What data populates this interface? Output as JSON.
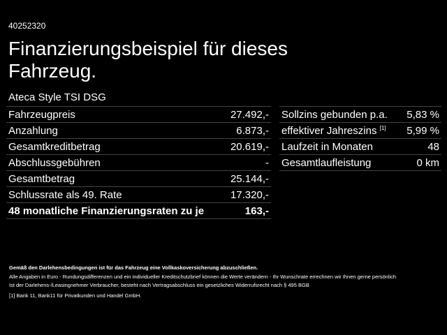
{
  "header": {
    "id": "40252320",
    "title_lines": [
      "Finanzierungsbeispiel für dieses",
      "Fahrzeug."
    ],
    "model": "Ateca Style TSI DSG"
  },
  "left_table": {
    "rows": [
      [
        "Fahrzeugpreis",
        "27.492,-"
      ],
      [
        "Anzahlung",
        "6.873,-"
      ],
      [
        "Gesamtkreditbetrag",
        "20.619,-"
      ],
      [
        "Abschlussgebühren",
        "-"
      ],
      [
        "Gesamtbetrag",
        "25.144,-"
      ],
      [
        "Schlussrate als 49. Rate",
        "17.320,-"
      ],
      [
        "48 monatliche Finanzierungsraten zu je",
        "163,-"
      ]
    ]
  },
  "right_table": {
    "rows": [
      {
        "label": "Sollzins gebunden p.a.",
        "value": "5,83 %"
      },
      {
        "label": "effektiver Jahreszins",
        "sup": "[1]",
        "value": "5,99 %"
      },
      {
        "label": "Laufzeit in Monaten",
        "value": "48"
      },
      {
        "label": "Gesamtlaufleistung",
        "value": "0 km"
      }
    ]
  },
  "footer": {
    "notice": "Gemäß den Darlehensbedingungen ist für das Fahrzeug eine Vollkaskoversicherung abzuschließen.",
    "lines": [
      "Alle Angaben in Euro - Rundungsdifferenzen und ein individueller Kreditschutzbrief können die Werte verändern - Ihr Wunschrate errechnen wir Ihnen gerne persönlich",
      "Ist der Darlehens-/Leasingnehmer Verbraucher, besteht nach Vertragsabschluss ein gesetzliches Widerrufsrecht nach § 495 BGB"
    ],
    "footnote_mark": "[1]",
    "footnote": "Bank 11, Bank11 für Privatkunden und Handel GmbH."
  }
}
